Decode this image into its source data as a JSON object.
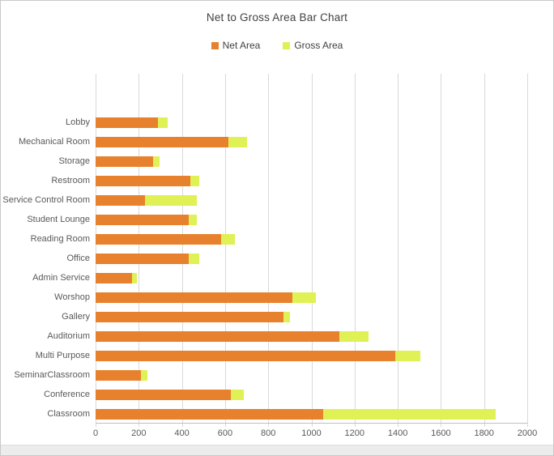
{
  "chart": {
    "title": "Net to Gross Area Bar Chart"
  },
  "legend": [
    {
      "label": "Net Area",
      "color": "#e8812d"
    },
    {
      "label": "Gross Area",
      "color": "#dff154"
    }
  ],
  "colors": {
    "net_bar": "#e8812d",
    "gross_bar": "#dff154",
    "gridline": "#d9d9d9",
    "axis_text": "#595959",
    "title_text": "#404040"
  },
  "chart_data": {
    "type": "bar",
    "orientation": "horizontal",
    "stacked": true,
    "title": "Net to Gross Area Bar Chart",
    "xlabel": "",
    "ylabel": "",
    "xlim": [
      0,
      2000
    ],
    "x_ticks": [
      0,
      200,
      400,
      600,
      800,
      1000,
      1200,
      1400,
      1600,
      1800,
      2000
    ],
    "grid": "vertical",
    "legend_position": "top-center",
    "categories": [
      "Lobby",
      "Mechanical Room",
      "Storage",
      "Restroom",
      "Service Control Room",
      "Student Lounge",
      "Reading Room",
      "Office",
      "Admin Service",
      "Worshop",
      "Gallery",
      "Auditorium",
      "Multi Purpose",
      "SeminarClassroom",
      "Conference",
      "Classroom"
    ],
    "series": [
      {
        "name": "Net Area",
        "color": "#e8812d",
        "values": [
          290,
          615,
          265,
          440,
          230,
          430,
          580,
          430,
          170,
          910,
          870,
          1130,
          1390,
          210,
          625,
          1055
        ]
      },
      {
        "name": "Gross Area",
        "color": "#dff154",
        "values": [
          45,
          85,
          30,
          40,
          240,
          40,
          65,
          50,
          20,
          110,
          30,
          135,
          115,
          30,
          60,
          800
        ]
      }
    ],
    "stacked_totals": [
      335,
      700,
      295,
      480,
      470,
      470,
      645,
      480,
      190,
      1020,
      900,
      1265,
      1505,
      240,
      685,
      1855
    ]
  }
}
